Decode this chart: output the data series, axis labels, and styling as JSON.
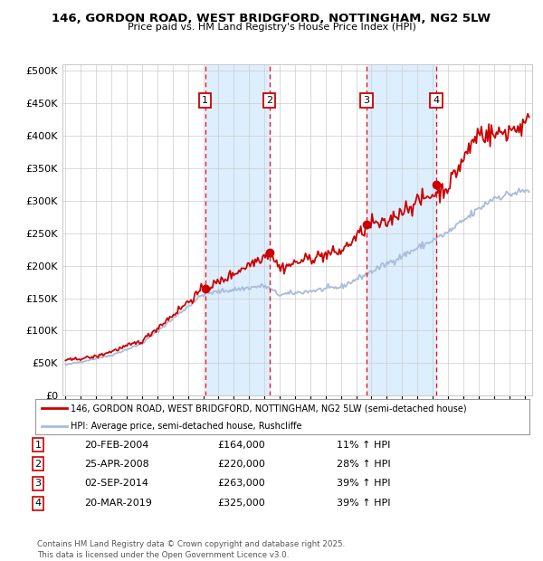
{
  "title": "146, GORDON ROAD, WEST BRIDGFORD, NOTTINGHAM, NG2 5LW",
  "subtitle": "Price paid vs. HM Land Registry's House Price Index (HPI)",
  "background_color": "#ffffff",
  "grid_color": "#cccccc",
  "hpi_line_color": "#aabcda",
  "price_line_color": "#cc0000",
  "shade_color": "#ddeeff",
  "transactions": [
    {
      "num": 1,
      "date": "20-FEB-2004",
      "x_year": 2004.13,
      "price": 164000,
      "pct": "11% ↑ HPI"
    },
    {
      "num": 2,
      "date": "25-APR-2008",
      "x_year": 2008.32,
      "price": 220000,
      "pct": "28% ↑ HPI"
    },
    {
      "num": 3,
      "date": "02-SEP-2014",
      "x_year": 2014.67,
      "price": 263000,
      "pct": "39% ↑ HPI"
    },
    {
      "num": 4,
      "date": "20-MAR-2019",
      "x_year": 2019.22,
      "price": 325000,
      "pct": "39% ↑ HPI"
    }
  ],
  "legend_line1": "146, GORDON ROAD, WEST BRIDGFORD, NOTTINGHAM, NG2 5LW (semi-detached house)",
  "legend_line2": "HPI: Average price, semi-detached house, Rushcliffe",
  "footnote": "Contains HM Land Registry data © Crown copyright and database right 2025.\nThis data is licensed under the Open Government Licence v3.0.",
  "ylim": [
    0,
    510000
  ],
  "xlim_start": 1994.8,
  "xlim_end": 2025.5,
  "yticks": [
    0,
    50000,
    100000,
    150000,
    200000,
    250000,
    300000,
    350000,
    400000,
    450000,
    500000
  ]
}
